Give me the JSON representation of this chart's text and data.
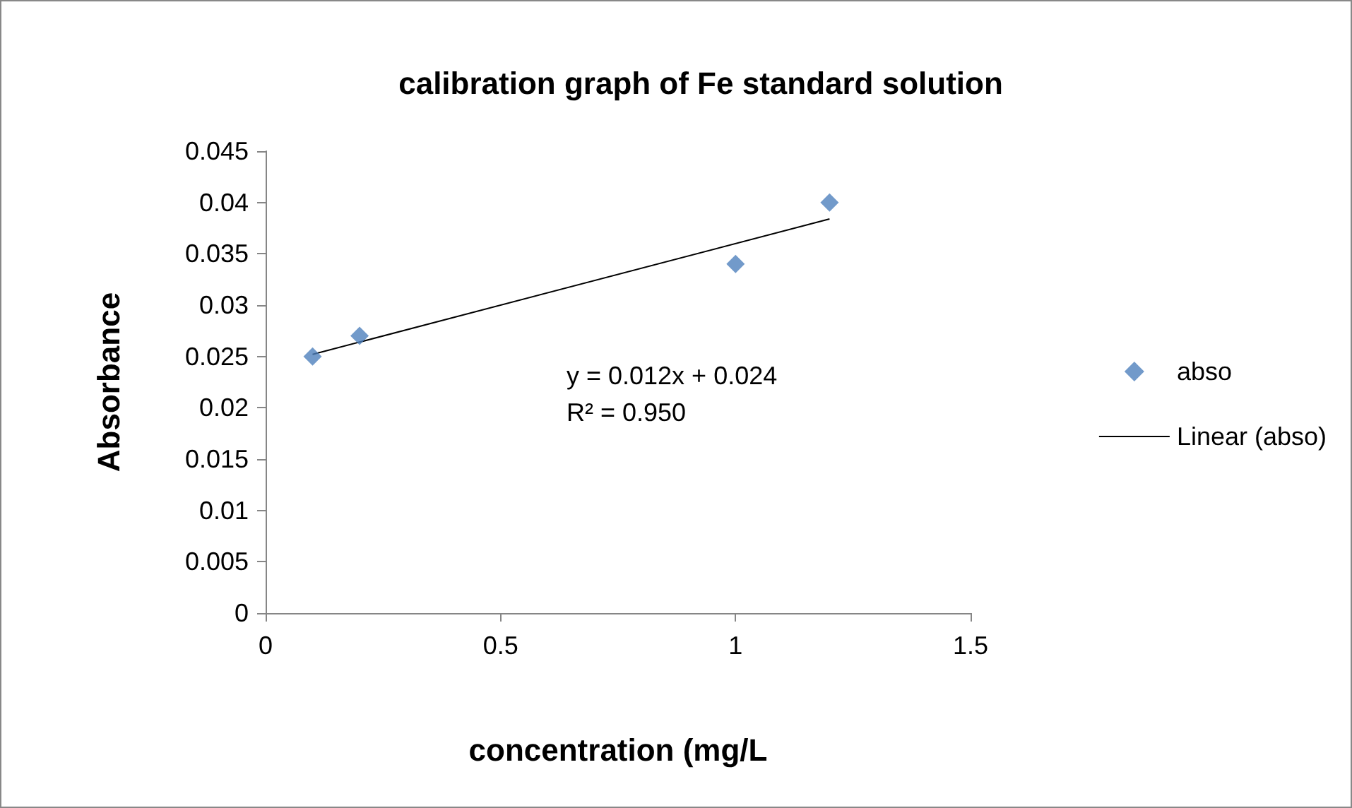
{
  "chart_data": {
    "type": "scatter",
    "title": "calibration graph of Fe standard solution",
    "xlabel": "concentration (mg/L",
    "ylabel": "Absorbance",
    "x": [
      0.1,
      0.2,
      1,
      1.2
    ],
    "series": [
      {
        "name": "abso",
        "color": "#4f81bd",
        "marker": "diamond",
        "values": [
          0.025,
          0.027,
          0.034,
          0.04
        ]
      },
      {
        "name": "Linear (abso)",
        "type": "line",
        "color": "#000000",
        "marker": "none",
        "line_style": "solid",
        "x": [
          0.1,
          1.2
        ],
        "values": [
          0.0252,
          0.0384
        ]
      }
    ],
    "annotations": [
      "y = 0.012x + 0.024",
      "R² = 0.950"
    ],
    "xlim": [
      0,
      1.5
    ],
    "xticks": [
      0,
      0.5,
      1,
      1.5
    ],
    "ylim": [
      0,
      0.045
    ],
    "yticks": [
      0,
      0.005,
      0.01,
      0.015,
      0.02,
      0.025,
      0.03,
      0.035,
      0.04,
      0.045
    ],
    "grid": false,
    "legend": "right"
  }
}
